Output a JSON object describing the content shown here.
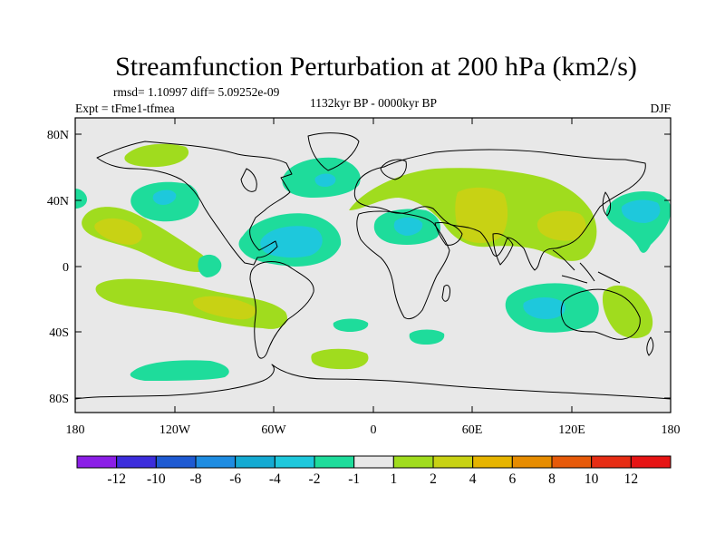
{
  "title": "Streamfunction Perturbation at 200 hPa (km2/s)",
  "stats": "rmsd= 1.10997 diff= 5.09252e-09",
  "experiment": "Expt = tFme1-tfmea",
  "period": "1132kyr BP - 0000kyr BP",
  "season": "DJF",
  "map": {
    "projection": "cylindrical-equidistant",
    "lon_range": [
      -180,
      180
    ],
    "lat_range": [
      -90,
      90
    ],
    "y_tick_labels": [
      "80N",
      "40N",
      "0",
      "40S",
      "80S"
    ],
    "x_tick_labels": [
      "180",
      "120W",
      "60W",
      "0",
      "60E",
      "120E",
      "180"
    ]
  },
  "colorbar": {
    "labels": [
      "-12",
      "-10",
      "-8",
      "-6",
      "-4",
      "-2",
      "-1",
      "1",
      "2",
      "4",
      "6",
      "8",
      "10",
      "12"
    ],
    "colors": [
      "#8b1ee6",
      "#3c2ddc",
      "#1e5ad2",
      "#1e8ce1",
      "#14aad2",
      "#1ec8dc",
      "#1edc9b",
      "#e8e8e8",
      "#a0dc1e",
      "#c8d214",
      "#e6b400",
      "#e68c00",
      "#e65a0a",
      "#e62d14",
      "#e61414"
    ]
  },
  "colors": {
    "background": "#e8e8e8",
    "coast": "#000000"
  }
}
